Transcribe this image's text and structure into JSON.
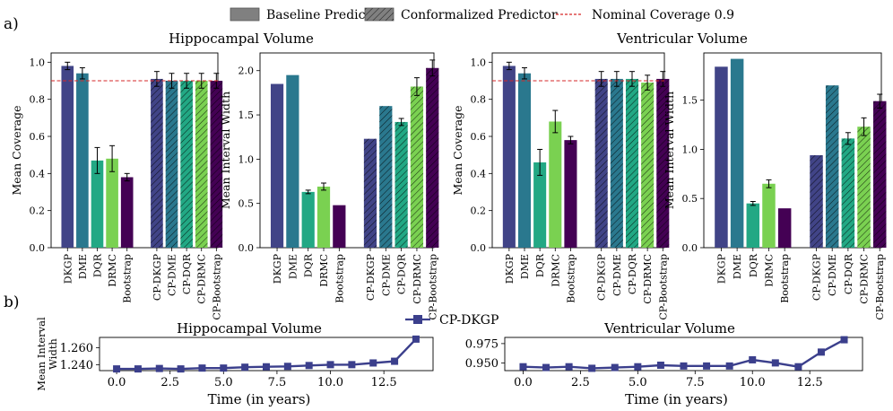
{
  "figure": {
    "panel_labels": [
      "a)",
      "b)"
    ],
    "legend": {
      "baseline": "Baseline Predictor",
      "conformal": "Conformalized Predictor",
      "nominal": "Nominal Coverage 0.9"
    },
    "panel_b_legend": "CP-DKGP"
  },
  "colors": {
    "DKGP": "#414487",
    "DME": "#2a788e",
    "DQR": "#22a884",
    "DRMC": "#7ad151",
    "Bootstrap": "#440154",
    "nominal_line": "#d62728",
    "line_b": "#3b3f8c"
  },
  "chart_data": [
    {
      "type": "bar",
      "title": "Hippocampal Volume",
      "ylabel": "Mean Coverage",
      "ylim": [
        0,
        1.05
      ],
      "yticks": [
        0.0,
        0.2,
        0.4,
        0.6,
        0.8,
        1.0
      ],
      "yticklabels": [
        "0.0",
        "0.2",
        "0.4",
        "0.6",
        "0.8",
        "1.0"
      ],
      "reference_line": 0.9,
      "categories": [
        "DKGP",
        "DME",
        "DQR",
        "DRMC",
        "Bootstrap",
        "CP-DKGP",
        "CP-DME",
        "CP-DQR",
        "CP-DRMC",
        "CP-Bootstrap"
      ],
      "values": [
        0.98,
        0.94,
        0.47,
        0.48,
        0.38,
        0.91,
        0.9,
        0.9,
        0.9,
        0.9
      ],
      "errors": [
        0.02,
        0.03,
        0.07,
        0.07,
        0.02,
        0.04,
        0.04,
        0.04,
        0.04,
        0.04
      ],
      "hatched": [
        false,
        false,
        false,
        false,
        false,
        true,
        true,
        true,
        true,
        true
      ]
    },
    {
      "type": "bar",
      "title": "",
      "ylabel": "Mean Interval Width",
      "ylim": [
        0,
        2.2
      ],
      "yticks": [
        0.0,
        0.5,
        1.0,
        1.5,
        2.0
      ],
      "yticklabels": [
        "0.0",
        "0.5",
        "1.0",
        "1.5",
        "2.0"
      ],
      "categories": [
        "DKGP",
        "DME",
        "DQR",
        "DRMC",
        "Bootstrap",
        "CP-DKGP",
        "CP-DME",
        "CP-DQR",
        "CP-DRMC",
        "CP-Bootstrap"
      ],
      "values": [
        1.85,
        1.95,
        0.63,
        0.69,
        0.48,
        1.23,
        1.6,
        1.42,
        1.82,
        2.03
      ],
      "errors": [
        0.0,
        0.0,
        0.02,
        0.04,
        0.0,
        0.0,
        0.0,
        0.04,
        0.1,
        0.09
      ],
      "hatched": [
        false,
        false,
        false,
        false,
        false,
        true,
        true,
        true,
        true,
        true
      ]
    },
    {
      "type": "bar",
      "title": "Ventricular Volume",
      "ylabel": "Mean Coverage",
      "ylim": [
        0,
        1.05
      ],
      "yticks": [
        0.0,
        0.2,
        0.4,
        0.6,
        0.8,
        1.0
      ],
      "yticklabels": [
        "0.0",
        "0.2",
        "0.4",
        "0.6",
        "0.8",
        "1.0"
      ],
      "reference_line": 0.9,
      "categories": [
        "DKGP",
        "DME",
        "DQR",
        "DRMC",
        "Bootstrap",
        "CP-DKGP",
        "CP-DME",
        "CP-DQR",
        "CP-DRMC",
        "CP-Bootstrap"
      ],
      "values": [
        0.98,
        0.94,
        0.46,
        0.68,
        0.58,
        0.91,
        0.91,
        0.91,
        0.89,
        0.91
      ],
      "errors": [
        0.02,
        0.03,
        0.07,
        0.06,
        0.02,
        0.04,
        0.04,
        0.04,
        0.04,
        0.04
      ],
      "hatched": [
        false,
        false,
        false,
        false,
        false,
        true,
        true,
        true,
        true,
        true
      ]
    },
    {
      "type": "bar",
      "title": "",
      "ylabel": "Mean Interval Width",
      "ylim": [
        0,
        1.98
      ],
      "yticks": [
        0.0,
        0.5,
        1.0,
        1.5
      ],
      "yticklabels": [
        "0.0",
        "0.5",
        "1.0",
        "1.5"
      ],
      "categories": [
        "DKGP",
        "DME",
        "DQR",
        "DRMC",
        "Bootstrap",
        "CP-DKGP",
        "CP-DME",
        "CP-DQR",
        "CP-DRMC",
        "CP-Bootstrap"
      ],
      "values": [
        1.84,
        1.92,
        0.45,
        0.65,
        0.4,
        0.94,
        1.65,
        1.11,
        1.23,
        1.49
      ],
      "errors": [
        0.0,
        0.0,
        0.02,
        0.04,
        0.0,
        0.0,
        0.0,
        0.06,
        0.09,
        0.07
      ],
      "hatched": [
        false,
        false,
        false,
        false,
        false,
        true,
        true,
        true,
        true,
        true
      ]
    },
    {
      "type": "line",
      "title": "Hippocampal Volume",
      "ylabel": "Mean Interval Width",
      "xlabel": "Time (in years)",
      "series": [
        {
          "name": "CP-DKGP",
          "values": [
            1.235,
            1.235,
            1.2355,
            1.235,
            1.236,
            1.236,
            1.237,
            1.2375,
            1.238,
            1.239,
            1.24,
            1.24,
            1.242,
            1.244,
            1.27
          ]
        }
      ],
      "x": [
        0,
        1,
        2,
        3,
        4,
        5,
        6,
        7,
        8,
        9,
        10,
        11,
        12,
        13,
        14
      ],
      "xlim": [
        -0.8,
        14.8
      ],
      "ylim": [
        1.233,
        1.272
      ],
      "xticks": [
        0.0,
        2.5,
        5.0,
        7.5,
        10.0,
        12.5
      ],
      "xticklabels": [
        "0.0",
        "2.5",
        "5.0",
        "7.5",
        "10.0",
        "12.5"
      ],
      "yticks": [
        1.24,
        1.26
      ],
      "yticklabels": [
        "1.240",
        "1.260"
      ]
    },
    {
      "type": "line",
      "title": "Ventricular Volume",
      "ylabel": "",
      "xlabel": "Time (in years)",
      "series": [
        {
          "name": "CP-DKGP",
          "values": [
            0.945,
            0.944,
            0.945,
            0.943,
            0.944,
            0.945,
            0.947,
            0.946,
            0.946,
            0.946,
            0.954,
            0.95,
            0.945,
            0.964,
            0.98
          ]
        }
      ],
      "x": [
        0,
        1,
        2,
        3,
        4,
        5,
        6,
        7,
        8,
        9,
        10,
        11,
        12,
        13,
        14
      ],
      "xlim": [
        -0.8,
        14.8
      ],
      "ylim": [
        0.94,
        0.983
      ],
      "xticks": [
        0.0,
        2.5,
        5.0,
        7.5,
        10.0,
        12.5
      ],
      "xticklabels": [
        "0.0",
        "2.5",
        "5.0",
        "7.5",
        "10.0",
        "12.5"
      ],
      "yticks": [
        0.95,
        0.975
      ],
      "yticklabels": [
        "0.950",
        "0.975"
      ]
    }
  ]
}
